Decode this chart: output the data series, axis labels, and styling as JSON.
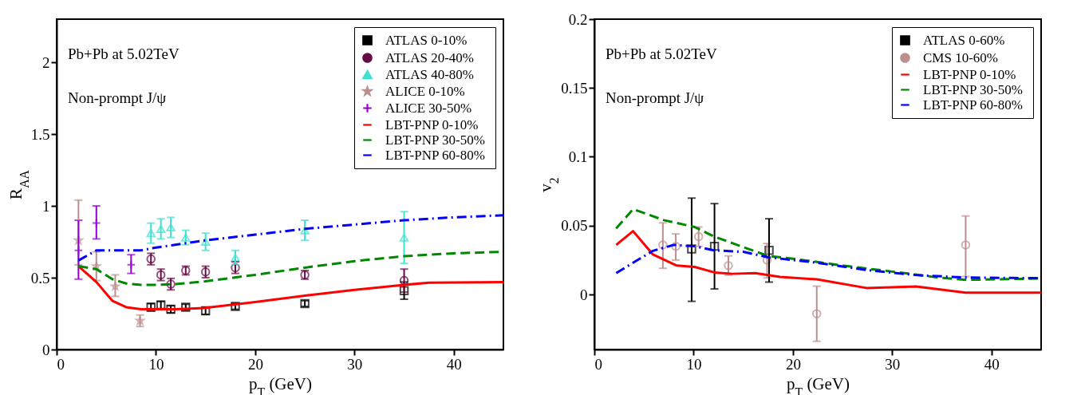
{
  "chart_data": [
    {
      "type": "scatter",
      "xlabel": "p$_{T}$ (GeV)",
      "ylabel": "R$_{AA}$",
      "xlim": [
        0,
        45
      ],
      "ylim": [
        0,
        2.3
      ],
      "xticks": [
        0,
        10,
        20,
        30,
        40
      ],
      "yticks": [
        0,
        0.5,
        1,
        1.5,
        2
      ],
      "grid": false,
      "legend": "top right",
      "annotations": [
        "Pb+Pb at 5.02TeV",
        "Non-prompt  J/ψ"
      ],
      "series": [
        {
          "name": "ATLAS  0-10%",
          "type": "scatter",
          "marker": "square",
          "color": "#000000",
          "x": [
            9.5,
            10.5,
            11.5,
            13,
            15,
            18,
            25,
            35
          ],
          "values": [
            0.295,
            0.31,
            0.28,
            0.295,
            0.27,
            0.3,
            0.32,
            0.41
          ],
          "errors": [
            0.025,
            0.025,
            0.025,
            0.02,
            0.025,
            0.02,
            0.02,
            0.06
          ]
        },
        {
          "name": "ATLAS  20-40%",
          "type": "scatter",
          "marker": "circle",
          "color": "#660a46",
          "x": [
            9.5,
            10.5,
            11.5,
            13,
            15,
            18,
            25,
            35
          ],
          "values": [
            0.63,
            0.52,
            0.455,
            0.55,
            0.54,
            0.57,
            0.52,
            0.48
          ],
          "errors": [
            0.04,
            0.04,
            0.04,
            0.03,
            0.04,
            0.04,
            0.03,
            0.08
          ]
        },
        {
          "name": "ATLAS  40-80%",
          "type": "scatter",
          "marker": "triangle",
          "color": "#40e0d0",
          "x": [
            9.5,
            10.5,
            11.5,
            13,
            15,
            18,
            25,
            35
          ],
          "values": [
            0.81,
            0.84,
            0.85,
            0.78,
            0.75,
            0.64,
            0.83,
            0.78
          ],
          "errors": [
            0.07,
            0.07,
            0.07,
            0.05,
            0.06,
            0.05,
            0.07,
            0.18
          ]
        },
        {
          "name": "ALICE   0-10%",
          "type": "scatter",
          "marker": "star",
          "color": "#bc8f8f",
          "x": [
            2.2,
            4,
            5.9,
            8.4
          ],
          "values": [
            0.76,
            0.58,
            0.44,
            0.2
          ],
          "errors": [
            [
              0.59,
              1.04
            ],
            [
              0.48,
              0.68
            ],
            [
              0.37,
              0.52
            ],
            [
              0.16,
              0.24
            ]
          ]
        },
        {
          "name": "ALICE   30-50%",
          "type": "scatter",
          "marker": "cross",
          "color": "#9400d3",
          "x": [
            2.2,
            4,
            7.5
          ],
          "values": [
            0.69,
            0.88,
            0.59
          ],
          "errors": [
            [
              0.49,
              0.9
            ],
            [
              0.77,
              1.0
            ],
            [
              0.53,
              0.66
            ]
          ]
        },
        {
          "name": "LBT-PNP  0-10%",
          "type": "line",
          "line_style": "solid",
          "color": "#ff0000",
          "x": [
            2.2,
            4,
            5.6,
            7,
            8.5,
            10,
            12,
            15,
            20,
            25,
            30,
            35,
            37.5,
            45
          ],
          "values": [
            0.58,
            0.47,
            0.34,
            0.295,
            0.28,
            0.28,
            0.28,
            0.29,
            0.33,
            0.375,
            0.415,
            0.45,
            0.465,
            0.47
          ]
        },
        {
          "name": "LBT-PNP  30-50%",
          "type": "line",
          "line_style": "dashed",
          "color": "#008800",
          "x": [
            2.2,
            4,
            5.6,
            7,
            8.5,
            10,
            12,
            15,
            20,
            25,
            30,
            35,
            40,
            45
          ],
          "values": [
            0.58,
            0.56,
            0.49,
            0.46,
            0.45,
            0.45,
            0.455,
            0.475,
            0.52,
            0.57,
            0.615,
            0.65,
            0.67,
            0.68
          ]
        },
        {
          "name": "LBT-PNP  60-80%",
          "type": "line",
          "line_style": "dashdot",
          "color": "#0000ff",
          "x": [
            2.2,
            4,
            6,
            8.5,
            10,
            15,
            20,
            25,
            30,
            35,
            40,
            45
          ],
          "values": [
            0.62,
            0.69,
            0.69,
            0.69,
            0.71,
            0.76,
            0.8,
            0.84,
            0.87,
            0.9,
            0.92,
            0.935
          ]
        }
      ]
    },
    {
      "type": "scatter",
      "xlabel": "p$_{T}$ (GeV)",
      "ylabel": "v$_{2}$",
      "xlim": [
        0,
        45
      ],
      "ylim": [
        -0.04,
        0.2
      ],
      "xticks": [
        0,
        10,
        20,
        30,
        40
      ],
      "yticks": [
        0,
        0.05,
        0.1,
        0.15,
        0.2
      ],
      "grid": false,
      "legend": "top right",
      "annotations": [
        "Pb+Pb at 5.02TeV",
        "Non-prompt  J/ψ"
      ],
      "series": [
        {
          "name": "ATLAS  0-60%",
          "type": "scatter",
          "marker": "square",
          "color": "#000000",
          "x": [
            9.8,
            12.1,
            17.6
          ],
          "values": [
            0.033,
            0.035,
            0.032
          ],
          "errors": [
            [
              -0.005,
              0.07
            ],
            [
              0.004,
              0.066
            ],
            [
              0.009,
              0.055
            ]
          ]
        },
        {
          "name": "CMS   10-60%",
          "type": "scatter",
          "marker": "circle",
          "color": "#bc8f8f",
          "x": [
            6.9,
            8.2,
            10.5,
            13.5,
            17.4,
            22.4,
            37.4
          ],
          "values": [
            0.036,
            0.035,
            0.042,
            0.021,
            0.025,
            -0.014,
            0.036
          ],
          "errors": [
            [
              0.019,
              0.052
            ],
            [
              0.025,
              0.044
            ],
            [
              0.035,
              0.049
            ],
            [
              0.014,
              0.028
            ],
            [
              0.012,
              0.037
            ],
            [
              -0.034,
              0.006
            ],
            [
              0.013,
              0.057
            ]
          ]
        },
        {
          "name": "LBT-PNP  0-10%",
          "type": "line",
          "line_style": "solid",
          "color": "#ff0000",
          "x": [
            2.2,
            3.9,
            5.9,
            8.3,
            10.1,
            12.1,
            13.9,
            16.2,
            18.7,
            22.4,
            27.4,
            32.4,
            37.4,
            45
          ],
          "values": [
            0.036,
            0.046,
            0.029,
            0.021,
            0.02,
            0.016,
            0.015,
            0.0155,
            0.0127,
            0.011,
            0.0047,
            0.0058,
            0.0013,
            0.0013
          ]
        },
        {
          "name": "LBT-PNP  30-50%",
          "type": "line",
          "line_style": "dashed",
          "color": "#008800",
          "x": [
            2.2,
            3.9,
            7,
            10.1,
            12.1,
            14,
            17.5,
            20,
            25,
            30,
            35,
            37.5,
            45
          ],
          "values": [
            0.048,
            0.062,
            0.054,
            0.049,
            0.042,
            0.037,
            0.028,
            0.026,
            0.021,
            0.0166,
            0.012,
            0.0106,
            0.0116
          ]
        },
        {
          "name": "LBT-PNP  60-80%",
          "type": "line",
          "line_style": "dashdot",
          "color": "#0000ff",
          "x": [
            2.2,
            3.9,
            5.9,
            8,
            10.1,
            12.1,
            15,
            17.5,
            22.5,
            27.5,
            32.5,
            37.5,
            45
          ],
          "values": [
            0.0155,
            0.023,
            0.0317,
            0.036,
            0.035,
            0.032,
            0.031,
            0.027,
            0.023,
            0.0177,
            0.014,
            0.0123,
            0.0118
          ]
        }
      ]
    }
  ]
}
